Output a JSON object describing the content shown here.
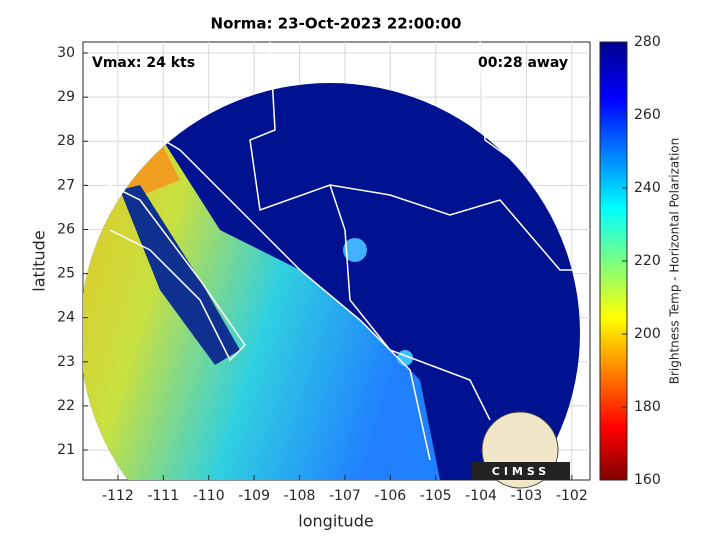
{
  "chart_data": {
    "type": "map",
    "title": "Norma: 23-Oct-2023 22:00:00",
    "xlabel": "longitude",
    "ylabel": "latitude",
    "xlim": [
      -112.77,
      -101.6
    ],
    "xticks": [
      -112,
      -111,
      -110,
      -109,
      -108,
      -107,
      -106,
      -105,
      -104,
      -103,
      -102
    ],
    "ylim": [
      20.32,
      30.25
    ],
    "yticks": [
      21,
      22,
      23,
      24,
      25,
      26,
      27,
      28,
      29,
      30
    ],
    "grid": true,
    "annotations": [
      "Vmax: 24 kts",
      "00:28 away"
    ],
    "logo": "CIMSS",
    "colorbar": {
      "label": "Brightness Temp - Horizontal Polarization",
      "lim": [
        160,
        280
      ],
      "ticks": [
        160,
        180,
        200,
        220,
        240,
        260,
        280
      ]
    }
  }
}
